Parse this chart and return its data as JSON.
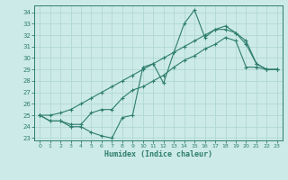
{
  "xlabel": "Humidex (Indice chaleur)",
  "bg_color": "#cceae8",
  "grid_color": "#b0d8d5",
  "line_color": "#2e7d6e",
  "xlim": [
    -0.5,
    23.5
  ],
  "ylim": [
    22.8,
    34.6
  ],
  "yticks": [
    23,
    24,
    25,
    26,
    27,
    28,
    29,
    30,
    31,
    32,
    33,
    34
  ],
  "xticks": [
    0,
    1,
    2,
    3,
    4,
    5,
    6,
    7,
    8,
    9,
    10,
    11,
    12,
    13,
    14,
    15,
    16,
    17,
    18,
    19,
    20,
    21,
    22,
    23
  ],
  "series": [
    [
      25.0,
      24.5,
      24.5,
      24.0,
      24.0,
      23.5,
      23.2,
      23.0,
      24.8,
      25.0,
      29.2,
      29.5,
      27.8,
      30.5,
      33.0,
      34.2,
      31.8,
      32.5,
      32.5,
      32.2,
      31.5,
      29.5,
      29.0,
      29.0
    ],
    [
      25.0,
      24.5,
      24.5,
      24.2,
      24.2,
      25.2,
      25.5,
      25.5,
      26.5,
      27.2,
      27.5,
      28.0,
      28.5,
      29.2,
      29.8,
      30.2,
      30.8,
      31.2,
      31.8,
      31.5,
      29.2,
      29.2,
      29.0,
      29.0
    ],
    [
      25.0,
      25.0,
      25.2,
      25.5,
      26.0,
      26.5,
      27.0,
      27.5,
      28.0,
      28.5,
      29.0,
      29.5,
      30.0,
      30.5,
      31.0,
      31.5,
      32.0,
      32.5,
      32.8,
      32.2,
      31.2,
      29.5,
      29.0,
      29.0
    ]
  ]
}
